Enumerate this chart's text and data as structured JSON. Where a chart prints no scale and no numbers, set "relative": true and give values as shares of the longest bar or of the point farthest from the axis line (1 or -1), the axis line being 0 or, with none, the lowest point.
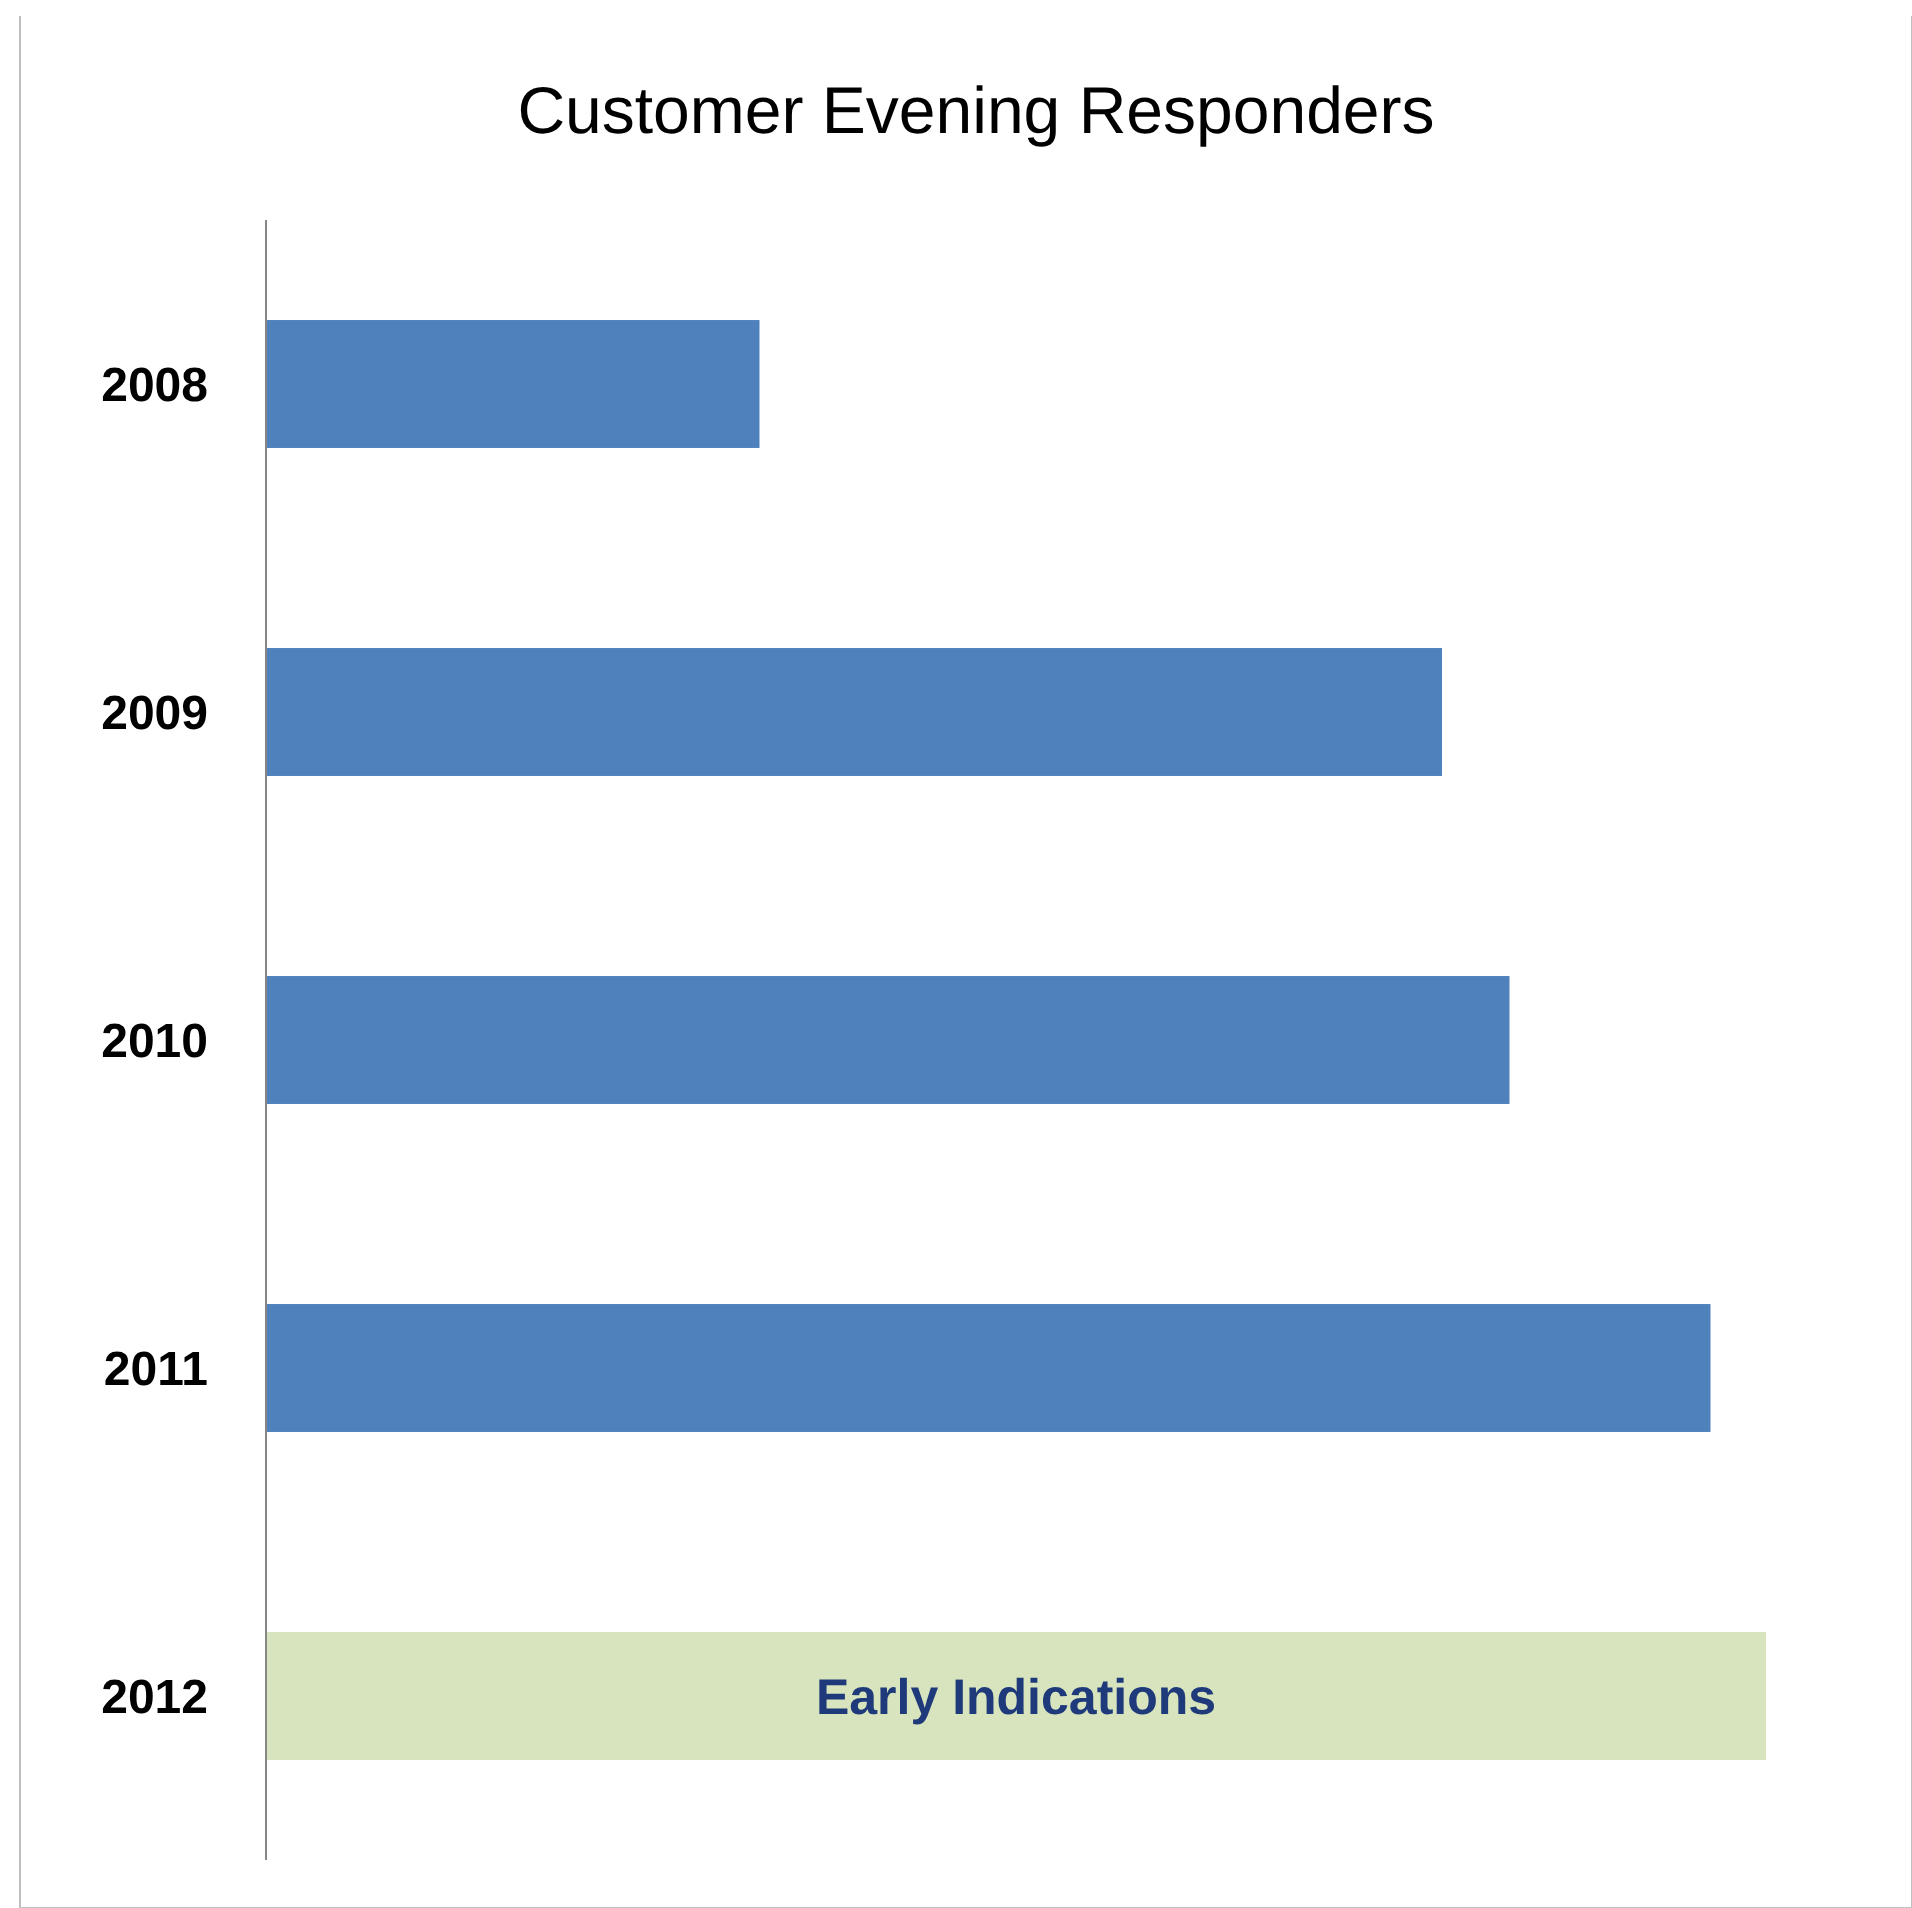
{
  "chart_data": {
    "type": "bar",
    "orientation": "horizontal",
    "relative": true,
    "title": "Customer Evening Responders",
    "categories": [
      "2008",
      "2009",
      "2010",
      "2011",
      "2012"
    ],
    "values": [
      0.329,
      0.784,
      0.829,
      0.963,
      1
    ],
    "colors": [
      "#4f81bd",
      "#4f81bd",
      "#4f81bd",
      "#4f81bd",
      "#d7e4bd"
    ],
    "annotations": [
      "Early Indications"
    ]
  }
}
